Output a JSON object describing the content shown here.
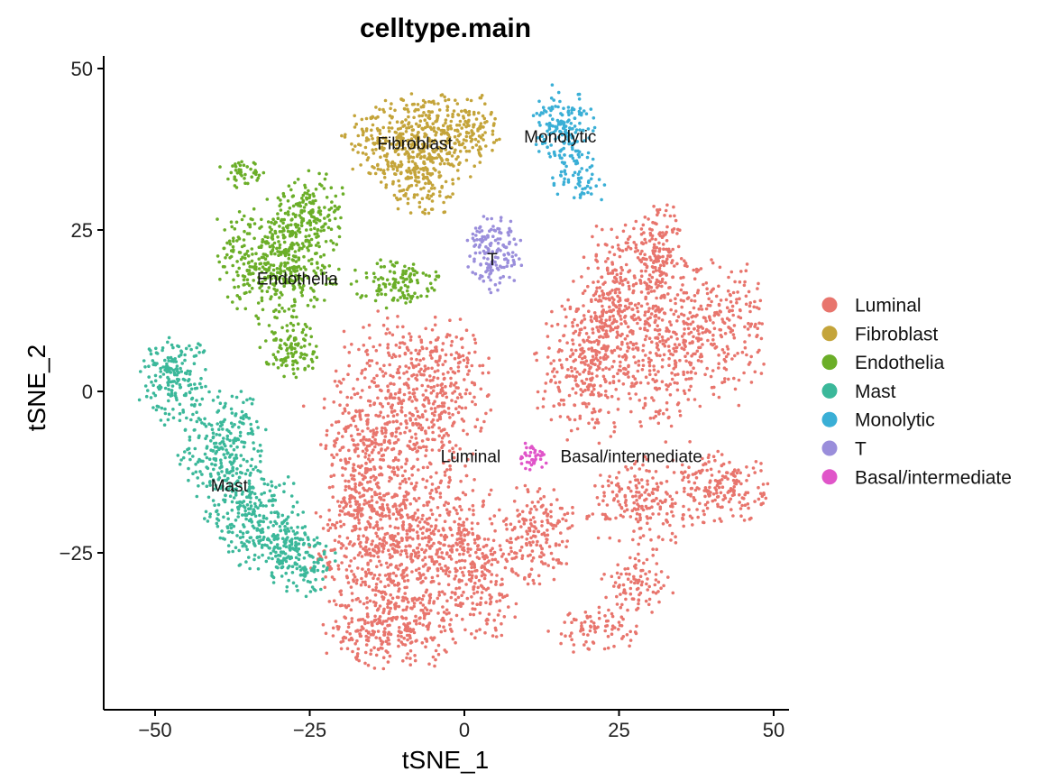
{
  "chart_data": {
    "type": "scatter",
    "title": "celltype.main",
    "xlabel": "tSNE_1",
    "ylabel": "tSNE_2",
    "xlim": [
      -58,
      51
    ],
    "ylim": [
      -48.5,
      52.5
    ],
    "xticks": [
      -50,
      -25,
      0,
      25,
      50
    ],
    "yticks": [
      -25,
      0,
      25,
      50
    ],
    "xtick_labels": [
      "−50",
      "−25",
      "0",
      "25",
      "50"
    ],
    "ytick_labels": [
      "−25",
      "0",
      "25",
      "50"
    ],
    "legend_position": "right",
    "series": [
      {
        "name": "Luminal",
        "color": "#E8756D",
        "regions": [
          {
            "cx": -12,
            "cy": -5,
            "rx": 9,
            "ry": 15,
            "n": 520
          },
          {
            "cx": -3,
            "cy": 0,
            "rx": 6,
            "ry": 10,
            "n": 220
          },
          {
            "cx": -13,
            "cy": -25,
            "rx": 10,
            "ry": 10,
            "n": 420
          },
          {
            "cx": -3,
            "cy": -23,
            "rx": 8,
            "ry": 10,
            "n": 300
          },
          {
            "cx": -12,
            "cy": -37,
            "rx": 9,
            "ry": 5,
            "n": 260
          },
          {
            "cx": -17,
            "cy": -15,
            "rx": 4,
            "ry": 10,
            "n": 150
          },
          {
            "cx": 12,
            "cy": -22,
            "rx": 5,
            "ry": 7,
            "n": 180
          },
          {
            "cx": 3,
            "cy": -30,
            "rx": 5,
            "ry": 8,
            "n": 140
          },
          {
            "cx": 20,
            "cy": 4,
            "rx": 7,
            "ry": 10,
            "n": 300
          },
          {
            "cx": 24,
            "cy": 14,
            "rx": 6,
            "ry": 10,
            "n": 230
          },
          {
            "cx": 31,
            "cy": 22,
            "rx": 4,
            "ry": 6,
            "n": 130
          },
          {
            "cx": 32,
            "cy": 8,
            "rx": 7,
            "ry": 12,
            "n": 350
          },
          {
            "cx": 42,
            "cy": 10,
            "rx": 6,
            "ry": 9,
            "n": 200
          },
          {
            "cx": 29,
            "cy": -17,
            "rx": 8,
            "ry": 6,
            "n": 200
          },
          {
            "cx": 42,
            "cy": -15,
            "rx": 6,
            "ry": 5,
            "n": 170
          },
          {
            "cx": 28,
            "cy": -30,
            "rx": 5,
            "ry": 4,
            "n": 90
          },
          {
            "cx": 21,
            "cy": -37,
            "rx": 6,
            "ry": 3,
            "n": 80
          }
        ]
      },
      {
        "name": "Fibroblast",
        "color": "#C4A43A",
        "regions": [
          {
            "cx": -8,
            "cy": 39,
            "rx": 10,
            "ry": 6,
            "n": 420
          },
          {
            "cx": -7,
            "cy": 33,
            "rx": 5,
            "ry": 5,
            "n": 130
          },
          {
            "cx": 1,
            "cy": 41,
            "rx": 4,
            "ry": 5,
            "n": 90
          }
        ]
      },
      {
        "name": "Endothelia",
        "color": "#6BAE28",
        "regions": [
          {
            "cx": -30,
            "cy": 20,
            "rx": 8,
            "ry": 8,
            "n": 450
          },
          {
            "cx": -25,
            "cy": 28,
            "rx": 5,
            "ry": 5,
            "n": 140
          },
          {
            "cx": -11,
            "cy": 17,
            "rx": 6,
            "ry": 3,
            "n": 120
          },
          {
            "cx": -28,
            "cy": 7,
            "rx": 4,
            "ry": 4,
            "n": 110
          },
          {
            "cx": -36,
            "cy": 34,
            "rx": 3,
            "ry": 2,
            "n": 40
          }
        ]
      },
      {
        "name": "Mast",
        "color": "#3BB89A",
        "regions": [
          {
            "cx": -47,
            "cy": 2,
            "rx": 5,
            "ry": 6,
            "n": 180
          },
          {
            "cx": -39,
            "cy": -10,
            "rx": 6,
            "ry": 9,
            "n": 280
          },
          {
            "cx": -33,
            "cy": -20,
            "rx": 6,
            "ry": 7,
            "n": 240
          },
          {
            "cx": -27,
            "cy": -26,
            "rx": 5,
            "ry": 5,
            "n": 170
          }
        ]
      },
      {
        "name": "Monolytic",
        "color": "#3AAFD6",
        "regions": [
          {
            "cx": 16,
            "cy": 41,
            "rx": 4,
            "ry": 5,
            "n": 160
          },
          {
            "cx": 18,
            "cy": 33,
            "rx": 4,
            "ry": 3,
            "n": 60
          }
        ]
      },
      {
        "name": "T",
        "color": "#9A8EDB",
        "regions": [
          {
            "cx": 5,
            "cy": 21,
            "rx": 4,
            "ry": 5,
            "n": 150
          }
        ]
      },
      {
        "name": "Basal/intermediate",
        "color": "#E055C9",
        "regions": [
          {
            "cx": 11,
            "cy": -10,
            "rx": 2,
            "ry": 2.5,
            "n": 40
          }
        ]
      }
    ],
    "cluster_labels": [
      {
        "text": "Fibroblast",
        "x": -8,
        "y": 38.5
      },
      {
        "text": "Monolytic",
        "x": 15.5,
        "y": 39.5
      },
      {
        "text": "T",
        "x": 4.5,
        "y": 20.5
      },
      {
        "text": "Endothelia",
        "x": -27,
        "y": 17.5
      },
      {
        "text": "Mast",
        "x": -38,
        "y": -14.5
      },
      {
        "text": "Luminal",
        "x": 1,
        "y": -10
      },
      {
        "text": "Basal/intermediate",
        "x": 27,
        "y": -10
      }
    ]
  }
}
